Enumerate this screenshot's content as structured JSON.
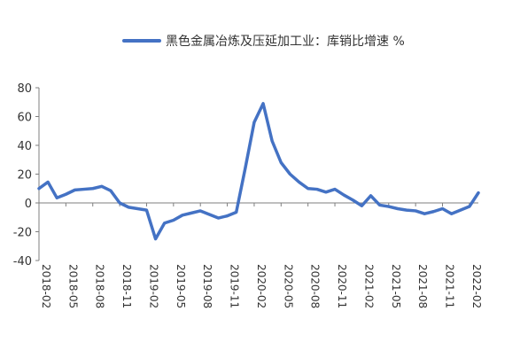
{
  "chart_data": {
    "type": "line",
    "title": "",
    "xlabel": "",
    "ylabel": "",
    "legend": {
      "placement": "top-center"
    },
    "ylim": [
      -40,
      80
    ],
    "yticks": [
      80,
      60,
      40,
      20,
      0,
      -20,
      -40
    ],
    "x_tick_labels": [
      "2018-02",
      "2018-05",
      "2018-08",
      "2018-11",
      "2019-02",
      "2019-05",
      "2019-08",
      "2019-11",
      "2020-02",
      "2020-05",
      "2020-08",
      "2020-11",
      "2021-02",
      "2021-05",
      "2021-08",
      "2021-11",
      "2022-02"
    ],
    "x": [
      "2018-02",
      "2018-03",
      "2018-04",
      "2018-05",
      "2018-06",
      "2018-07",
      "2018-08",
      "2018-09",
      "2018-10",
      "2018-11",
      "2018-12",
      "2019-01",
      "2019-02",
      "2019-03",
      "2019-04",
      "2019-05",
      "2019-06",
      "2019-07",
      "2019-08",
      "2019-09",
      "2019-10",
      "2019-11",
      "2019-12",
      "2020-01",
      "2020-02",
      "2020-03",
      "2020-04",
      "2020-05",
      "2020-06",
      "2020-07",
      "2020-08",
      "2020-09",
      "2020-10",
      "2020-11",
      "2020-12",
      "2021-01",
      "2021-02",
      "2021-03",
      "2021-04",
      "2021-05",
      "2021-06",
      "2021-07",
      "2021-08",
      "2021-09",
      "2021-10",
      "2021-11",
      "2021-12",
      "2022-01",
      "2022-02",
      "2022-03"
    ],
    "series": [
      {
        "name": "黑色金属冶炼及压延加工业：库销比增速 %",
        "color": "#4472C4",
        "values": [
          10,
          14.5,
          3.5,
          6,
          9,
          9.5,
          10,
          11.5,
          8.5,
          0,
          -3,
          -4,
          -5,
          -25,
          -14,
          -12,
          -8.5,
          -7,
          -5.5,
          -8,
          -10.5,
          -9,
          -6.5,
          24,
          56,
          69,
          43,
          28,
          20,
          14.5,
          10,
          9.5,
          7.5,
          9.5,
          5.5,
          2,
          -2,
          5,
          -1.5,
          -2.5,
          -4,
          -5,
          -5.5,
          -7.5,
          -6,
          -4,
          -7.5,
          -5,
          -2.5,
          7
        ]
      }
    ],
    "grid": false
  }
}
